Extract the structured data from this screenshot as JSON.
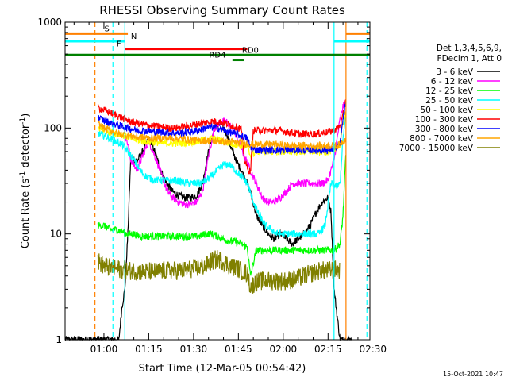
{
  "chart_data": {
    "type": "line",
    "title": "RHESSI Observing Summary Count Rates",
    "xlabel": "Start Time (12-Mar-05 00:54:42)",
    "ylabel_main": "Count Rate (s",
    "ylabel_sup1": "-1",
    "ylabel_mid": " detector",
    "ylabel_sup2": "-1",
    "ylabel_end": ")",
    "y_scale": "log",
    "ylim": [
      1,
      1000
    ],
    "xlim_minutes": [
      -7,
      95
    ],
    "x_ticks": [
      {
        "minute": 6,
        "label": "01:00"
      },
      {
        "minute": 21,
        "label": "01:15"
      },
      {
        "minute": 36,
        "label": "01:30"
      },
      {
        "minute": 51,
        "label": "01:45"
      },
      {
        "minute": 66,
        "label": "02:00"
      },
      {
        "minute": 81,
        "label": "02:15"
      },
      {
        "minute": 96,
        "label": "02:30"
      }
    ],
    "y_ticks": [
      {
        "value": 1,
        "label": "1"
      },
      {
        "value": 10,
        "label": "10"
      },
      {
        "value": 100,
        "label": "100"
      },
      {
        "value": 1000,
        "label": "1000"
      }
    ],
    "legend_header": [
      "Det 1,3,4,5,6,9,",
      "FDecim 1, Att 0"
    ],
    "legend_position": "right",
    "series": [
      {
        "name": "3 - 6 keV",
        "color": "#000000",
        "x": [
          -7,
          8,
          9,
          10,
          11,
          12,
          13,
          14,
          15,
          17,
          19,
          21,
          23,
          25,
          27,
          29,
          31,
          33,
          35,
          37,
          39,
          41,
          43,
          45,
          47,
          49,
          51,
          53,
          55,
          57,
          59,
          61,
          63,
          65,
          67,
          69,
          71,
          73,
          75,
          77,
          79,
          81,
          82,
          83,
          85,
          86,
          87,
          88,
          89
        ],
        "y": [
          1,
          1,
          1,
          1,
          1,
          2,
          3,
          10,
          55,
          48,
          60,
          80,
          60,
          40,
          30,
          25,
          23,
          22,
          22,
          23,
          30,
          60,
          100,
          110,
          90,
          60,
          45,
          35,
          25,
          15,
          12,
          10,
          9,
          10,
          9,
          8,
          9,
          10,
          12,
          16,
          20,
          22,
          16,
          3,
          1,
          1,
          1,
          1,
          1
        ]
      },
      {
        "name": "6 - 12 keV",
        "color": "#ff00ff",
        "x": [
          13,
          14,
          15,
          17,
          19,
          21,
          23,
          25,
          27,
          29,
          31,
          33,
          35,
          37,
          39,
          41,
          43,
          45,
          47,
          49,
          51,
          53,
          55,
          57,
          59,
          61,
          63,
          65,
          67,
          69,
          71,
          73,
          75,
          77,
          79,
          81,
          83,
          85,
          86,
          87
        ],
        "y": [
          90,
          70,
          50,
          40,
          55,
          75,
          55,
          38,
          26,
          22,
          20,
          19,
          19,
          20,
          25,
          55,
          100,
          115,
          115,
          100,
          75,
          55,
          40,
          30,
          22,
          20,
          20,
          22,
          25,
          30,
          30,
          30,
          30,
          30,
          30,
          32,
          50,
          120,
          160,
          180
        ]
      },
      {
        "name": "12 - 25 keV",
        "color": "#00ff00",
        "x": [
          4,
          6,
          8,
          10,
          12,
          14,
          16,
          18,
          20,
          22,
          24,
          26,
          28,
          30,
          32,
          34,
          36,
          38,
          40,
          42,
          44,
          46,
          48,
          50,
          52,
          54,
          55,
          57,
          59,
          61,
          63,
          65,
          67,
          69,
          71,
          73,
          75,
          77,
          79,
          81,
          83,
          85,
          86,
          87
        ],
        "y": [
          12,
          12,
          11,
          11,
          10.5,
          10,
          10,
          9.5,
          9.5,
          9.5,
          9.5,
          9.5,
          9.5,
          9.5,
          9.5,
          9.5,
          9.5,
          9.5,
          10,
          10,
          9.5,
          9,
          8.5,
          8.5,
          8,
          7.5,
          4,
          7,
          7,
          7,
          7,
          7,
          7,
          7,
          7,
          7,
          7,
          7,
          7,
          7,
          7,
          8,
          15,
          60
        ]
      },
      {
        "name": "25 - 50 keV",
        "color": "#00ffff",
        "x": [
          4,
          6,
          8,
          10,
          12,
          14,
          16,
          18,
          20,
          22,
          24,
          26,
          28,
          30,
          32,
          34,
          36,
          38,
          40,
          42,
          44,
          46,
          48,
          50,
          52,
          54,
          56,
          58,
          60,
          62,
          64,
          66,
          68,
          70,
          72,
          74,
          76,
          78,
          80,
          82,
          84,
          85,
          86,
          87
        ],
        "y": [
          90,
          85,
          80,
          75,
          70,
          60,
          50,
          40,
          35,
          33,
          32,
          32,
          32,
          32,
          31,
          30,
          30,
          30,
          32,
          35,
          40,
          45,
          45,
          40,
          35,
          30,
          20,
          15,
          12,
          11,
          10,
          10,
          10,
          10,
          10,
          10,
          10,
          10,
          12,
          30,
          28,
          30,
          80,
          130
        ]
      },
      {
        "name": "50 - 100 keV",
        "color": "#ffff00",
        "x": [
          4,
          6,
          8,
          10,
          12,
          14,
          16,
          18,
          20,
          22,
          24,
          26,
          28,
          30,
          32,
          34,
          36,
          38,
          40,
          42,
          44,
          46,
          48,
          50,
          52,
          54,
          55,
          57,
          59,
          61,
          63,
          65,
          67,
          69,
          71,
          73,
          75,
          77,
          79,
          81,
          83,
          85,
          86,
          87
        ],
        "y": [
          100,
          96,
          93,
          90,
          87,
          82,
          78,
          76,
          75,
          74,
          73,
          72,
          72,
          72,
          72,
          73,
          74,
          75,
          78,
          80,
          78,
          75,
          72,
          70,
          68,
          66,
          55,
          60,
          60,
          60,
          60,
          60,
          60,
          60,
          60,
          60,
          60,
          60,
          60,
          60,
          62,
          70,
          110,
          140
        ]
      },
      {
        "name": "100 - 300 keV",
        "color": "#ff0000",
        "x": [
          4,
          6,
          8,
          10,
          12,
          14,
          16,
          18,
          20,
          22,
          24,
          26,
          28,
          30,
          32,
          34,
          36,
          38,
          40,
          42,
          44,
          46,
          48,
          50,
          52,
          53,
          54,
          55,
          56,
          57,
          59,
          61,
          63,
          65,
          67,
          69,
          71,
          73,
          75,
          77,
          79,
          81,
          83,
          85,
          86,
          87
        ],
        "y": [
          155,
          148,
          140,
          133,
          125,
          118,
          113,
          110,
          107,
          105,
          103,
          102,
          100,
          100,
          102,
          104,
          107,
          110,
          112,
          115,
          115,
          112,
          108,
          103,
          98,
          50,
          42,
          38,
          95,
          95,
          95,
          95,
          95,
          95,
          92,
          90,
          88,
          88,
          88,
          88,
          90,
          92,
          95,
          105,
          130,
          200
        ]
      },
      {
        "name": "300 - 800 keV",
        "color": "#0000ff",
        "x": [
          4,
          6,
          8,
          10,
          12,
          14,
          16,
          18,
          20,
          22,
          24,
          26,
          28,
          30,
          32,
          34,
          36,
          38,
          40,
          42,
          44,
          46,
          48,
          50,
          52,
          54,
          55,
          57,
          59,
          61,
          63,
          65,
          67,
          69,
          71,
          73,
          75,
          77,
          79,
          81,
          83,
          85,
          86,
          87
        ],
        "y": [
          125,
          118,
          112,
          108,
          104,
          100,
          97,
          95,
          94,
          93,
          92,
          91,
          90,
          90,
          90,
          91,
          93,
          96,
          100,
          102,
          100,
          96,
          92,
          88,
          84,
          80,
          65,
          62,
          62,
          62,
          62,
          62,
          62,
          62,
          62,
          62,
          62,
          62,
          62,
          62,
          64,
          70,
          120,
          180
        ]
      },
      {
        "name": "800 - 7000 keV",
        "color": "#ffa500",
        "x": [
          4,
          6,
          8,
          10,
          12,
          14,
          16,
          18,
          20,
          22,
          24,
          26,
          28,
          30,
          32,
          34,
          36,
          38,
          40,
          42,
          44,
          46,
          48,
          50,
          52,
          54,
          56,
          58,
          60,
          62,
          64,
          66,
          68,
          70,
          72,
          74,
          76,
          78,
          80,
          82,
          84,
          85,
          86,
          87
        ],
        "y": [
          110,
          100,
          95,
          90,
          87,
          85,
          83,
          82,
          81,
          80,
          80,
          80,
          80,
          80,
          79,
          78,
          77,
          76,
          76,
          75,
          75,
          74,
          74,
          73,
          72,
          71,
          70,
          70,
          70,
          70,
          70,
          69,
          68,
          68,
          68,
          68,
          68,
          68,
          68,
          68,
          68,
          70,
          75,
          80
        ]
      },
      {
        "name": "7000 - 15000 keV",
        "color": "#808000",
        "x": [
          4,
          6,
          8,
          10,
          12,
          14,
          16,
          18,
          20,
          22,
          24,
          26,
          28,
          30,
          32,
          34,
          36,
          38,
          40,
          42,
          44,
          46,
          48,
          50,
          52,
          54,
          55,
          57,
          59,
          61,
          63,
          65,
          67,
          69,
          71,
          73,
          75,
          77,
          79,
          81,
          83,
          85
        ],
        "y": [
          5.5,
          5,
          4.8,
          4.7,
          4.6,
          4.5,
          4.5,
          4.4,
          4.4,
          4.4,
          4.4,
          4.5,
          4.5,
          4.5,
          4.5,
          4.6,
          4.7,
          4.8,
          5,
          5.5,
          5.8,
          5.5,
          5,
          4.8,
          4.5,
          4.2,
          3.2,
          3.5,
          3.6,
          3.6,
          3.6,
          3.6,
          3.6,
          3.7,
          3.8,
          4,
          4.2,
          4.4,
          4.5,
          4.5,
          4.6,
          4.5
        ]
      }
    ],
    "obs_bars": [
      {
        "label": "S",
        "color": "#ff8000",
        "x": [
          -7,
          14
        ],
        "y": 780,
        "label_x": 7
      },
      {
        "label": "S",
        "color": "#ff8000",
        "x": [
          87,
          95
        ],
        "y": 780,
        "label_x": null
      },
      {
        "label": "N",
        "color": "#00ffff",
        "x": [
          -7,
          13
        ],
        "y": 660,
        "label_x": 16
      },
      {
        "label": "N",
        "color": "#00ffff",
        "x": [
          83,
          95
        ],
        "y": 660,
        "label_x": null
      },
      {
        "label": "F",
        "color": "#ff0000",
        "x": [
          13,
          54
        ],
        "y": 560,
        "label_x": 11
      },
      {
        "label": "RD0",
        "color": "#008000",
        "x": [
          -7,
          95
        ],
        "y": 490,
        "label_x": 55
      },
      {
        "label": "RD4",
        "color": "#008000",
        "x": [
          49,
          53
        ],
        "y": 440,
        "label_x": 44
      }
    ],
    "vlines": [
      {
        "minute": 3,
        "color": "#ff8000",
        "style": "dashed"
      },
      {
        "minute": 9,
        "color": "#00ffff",
        "style": "dashed"
      },
      {
        "minute": 13,
        "color": "#00ffff",
        "style": "solid"
      },
      {
        "minute": 83,
        "color": "#00ffff",
        "style": "solid"
      },
      {
        "minute": 87,
        "color": "#ff8000",
        "style": "solid"
      },
      {
        "minute": 94,
        "color": "#00ffff",
        "style": "dashed"
      }
    ],
    "footer_date": "15-Oct-2021 10:47"
  }
}
